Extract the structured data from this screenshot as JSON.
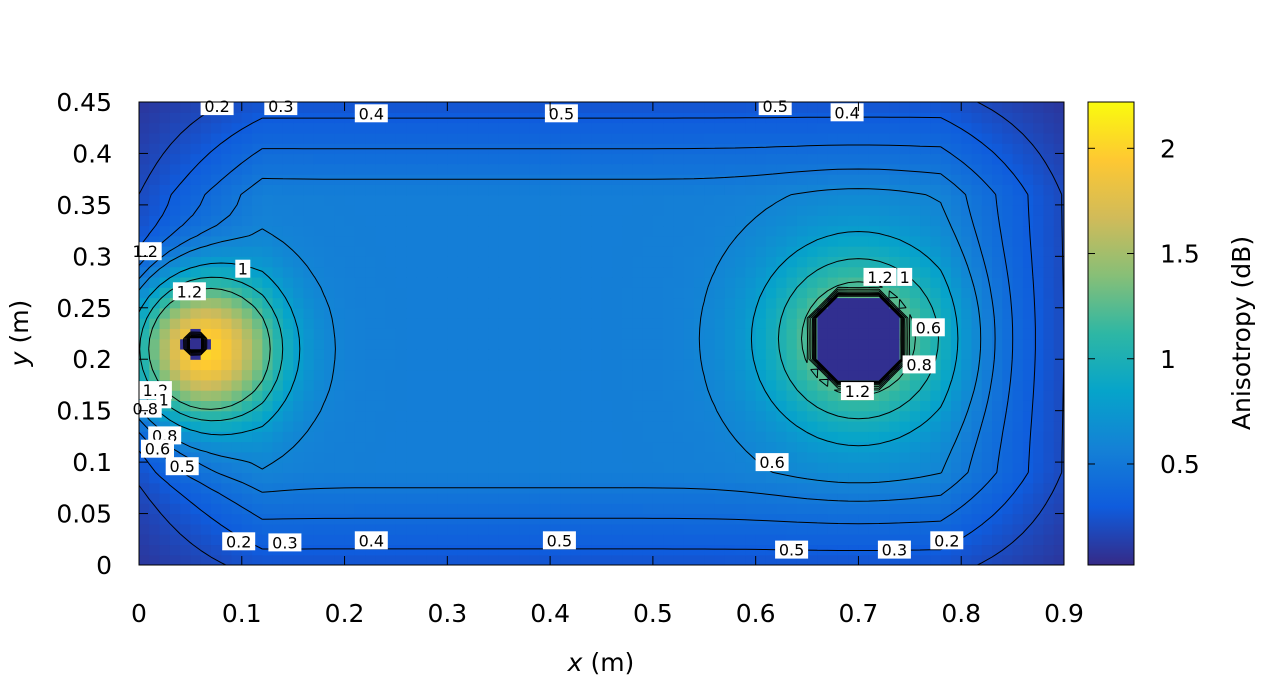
{
  "chart_data": {
    "type": "heatmap",
    "title": "",
    "xlabel_var": "x",
    "xlabel_unit": "(m)",
    "ylabel_var": "y",
    "ylabel_unit": "(m)",
    "xlim": [
      0,
      0.9
    ],
    "ylim": [
      0,
      0.45
    ],
    "x_ticks": [
      "0",
      "0.1",
      "0.2",
      "0.3",
      "0.4",
      "0.5",
      "0.6",
      "0.7",
      "0.8",
      "0.9"
    ],
    "y_ticks": [
      "0",
      "0.05",
      "0.1",
      "0.15",
      "0.2",
      "0.25",
      "0.3",
      "0.35",
      "0.4",
      "0.45"
    ],
    "colorbar": {
      "label": "Anisotropy (dB)",
      "range": [
        0.02,
        2.22
      ],
      "ticks": [
        "0.5",
        "1",
        "1.5",
        "2"
      ],
      "colormap": [
        "#352a87",
        "#0f5cdd",
        "#1481d6",
        "#06a4ca",
        "#2eb7a4",
        "#87bf77",
        "#d1bb59",
        "#fec832",
        "#f9fb0e"
      ]
    },
    "grid": false,
    "field_blobs": [
      {
        "name": "background",
        "value": 0.55
      },
      {
        "x": 0.06,
        "y": 0.21,
        "peak": 2.2,
        "radius": 0.07
      },
      {
        "x": 0.7,
        "y": 0.22,
        "peak": 1.5,
        "radius": 0.09
      },
      {
        "x": 0.7,
        "y": 0.22,
        "hole_value": 0.05,
        "hole_radius": 0.045
      },
      {
        "x": 0.055,
        "y": 0.215,
        "hole_value": 0.05,
        "hole_radius": 0.014
      }
    ],
    "contour_labels": [
      {
        "text": "0.2",
        "x": 0.076,
        "y": 0.446
      },
      {
        "text": "0.3",
        "x": 0.138,
        "y": 0.446
      },
      {
        "text": "0.4",
        "x": 0.226,
        "y": 0.439
      },
      {
        "text": "0.5",
        "x": 0.411,
        "y": 0.439
      },
      {
        "text": "0.5",
        "x": 0.619,
        "y": 0.446
      },
      {
        "text": "0.4",
        "x": 0.689,
        "y": 0.44
      },
      {
        "text": "1.2",
        "x": 0.006,
        "y": 0.305
      },
      {
        "text": "1",
        "x": 0.101,
        "y": 0.288
      },
      {
        "text": "1.2",
        "x": 0.049,
        "y": 0.266
      },
      {
        "text": "1.2",
        "x": 0.721,
        "y": 0.28
      },
      {
        "text": "1",
        "x": 0.745,
        "y": 0.28
      },
      {
        "text": "0.6",
        "x": 0.768,
        "y": 0.231
      },
      {
        "text": "0.8",
        "x": 0.759,
        "y": 0.195
      },
      {
        "text": "1.2",
        "x": 0.699,
        "y": 0.169
      },
      {
        "text": "1.2",
        "x": 0.016,
        "y": 0.17
      },
      {
        "text": "1",
        "x": 0.024,
        "y": 0.161
      },
      {
        "text": "0.8",
        "x": 0.006,
        "y": 0.152
      },
      {
        "text": "0.8",
        "x": 0.025,
        "y": 0.126
      },
      {
        "text": "0.6",
        "x": 0.018,
        "y": 0.113
      },
      {
        "text": "0.5",
        "x": 0.042,
        "y": 0.096
      },
      {
        "text": "0.6",
        "x": 0.616,
        "y": 0.1
      },
      {
        "text": "0.2",
        "x": 0.097,
        "y": 0.023
      },
      {
        "text": "0.3",
        "x": 0.142,
        "y": 0.022
      },
      {
        "text": "0.4",
        "x": 0.226,
        "y": 0.024
      },
      {
        "text": "0.5",
        "x": 0.409,
        "y": 0.024
      },
      {
        "text": "0.5",
        "x": 0.635,
        "y": 0.015
      },
      {
        "text": "0.3",
        "x": 0.735,
        "y": 0.015
      },
      {
        "text": "0.2",
        "x": 0.786,
        "y": 0.024
      }
    ]
  }
}
